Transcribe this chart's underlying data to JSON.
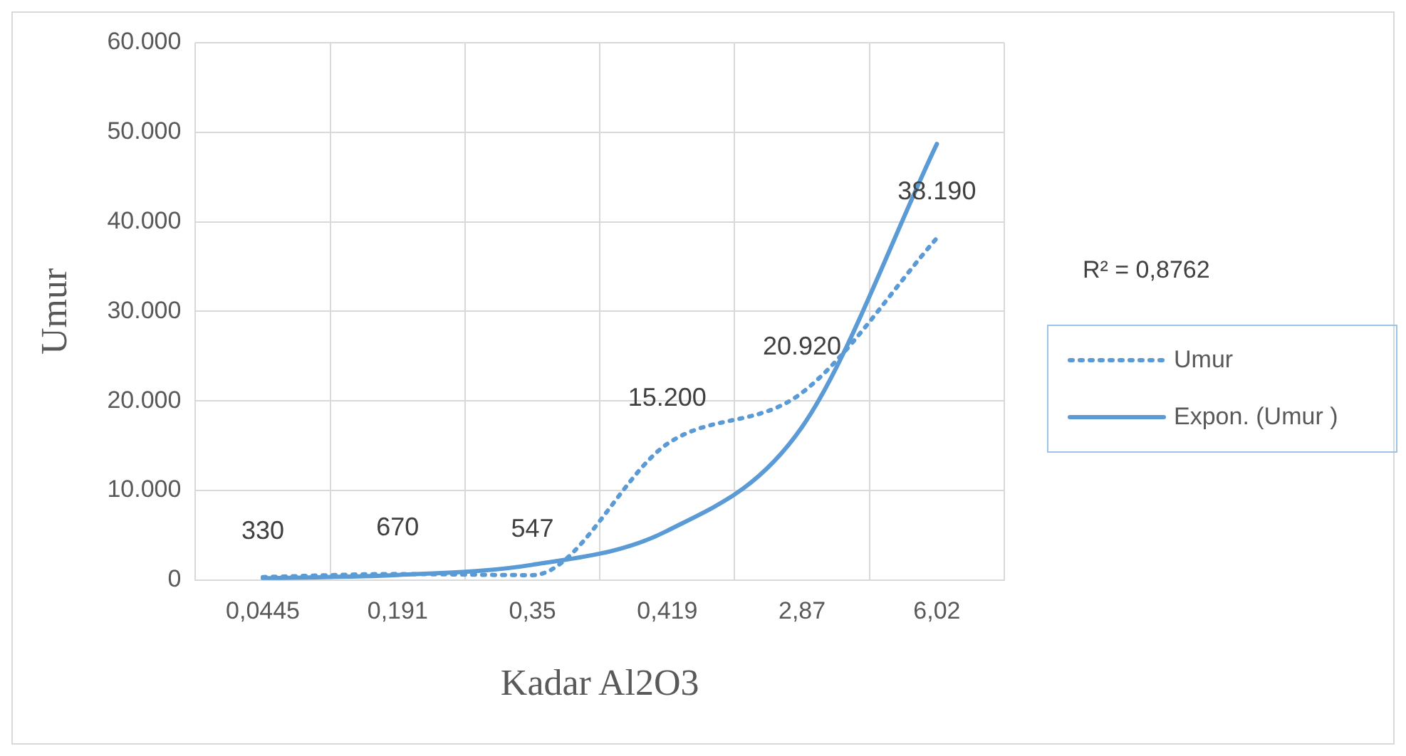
{
  "chart_data": {
    "type": "line",
    "xlabel": "Kadar Al2O3",
    "ylabel": "Umur",
    "categories": [
      "0,0445",
      "0,191",
      "0,35",
      "0,419",
      "2,87",
      "6,02"
    ],
    "series": [
      {
        "name": "Umur",
        "color": "#5b9bd5",
        "line_style": "dotted",
        "values": [
          330,
          670,
          547,
          15200,
          20920,
          38190
        ],
        "value_labels": [
          "330",
          "670",
          "547",
          "15.200",
          "20.920",
          "38.190"
        ]
      },
      {
        "name": "Expon. (Umur )",
        "type": "line",
        "color": "#5b9bd5",
        "line_style": "solid",
        "values": [
          200,
          560,
          1700,
          5500,
          17100,
          48700
        ]
      }
    ],
    "ylim": [
      0,
      60000
    ],
    "yticks": [
      {
        "value": 0,
        "label": "0"
      },
      {
        "value": 10000,
        "label": "10.000"
      },
      {
        "value": 20000,
        "label": "20.000"
      },
      {
        "value": 30000,
        "label": "30.000"
      },
      {
        "value": 40000,
        "label": "40.000"
      },
      {
        "value": 50000,
        "label": "50.000"
      },
      {
        "value": 60000,
        "label": "60.000"
      }
    ],
    "annotations": [
      "R² = 0,8762"
    ],
    "grid": true,
    "legend": "right",
    "marker": "none"
  }
}
